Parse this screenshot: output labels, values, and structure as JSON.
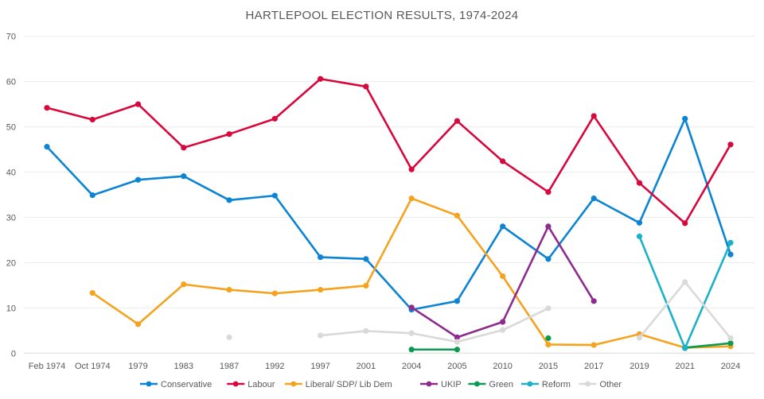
{
  "chart_data": {
    "type": "line",
    "title": "HARTLEPOOL ELECTION RESULTS, 1974-2024",
    "xlabel": "",
    "ylabel": "",
    "ylim": [
      0,
      70
    ],
    "yticks": [
      0,
      10,
      20,
      30,
      40,
      50,
      60,
      70
    ],
    "grid": true,
    "legend": "bottom",
    "categories": [
      "Feb 1974",
      "Oct 1974",
      "1979",
      "1983",
      "1987",
      "1992",
      "1997",
      "2001",
      "2004",
      "2005",
      "2010",
      "2015",
      "2017",
      "2019",
      "2021",
      "2024"
    ],
    "series": [
      {
        "name": "Conservative",
        "color": "#0b84d4",
        "values": [
          45.6,
          34.9,
          38.3,
          39.1,
          33.8,
          34.8,
          21.2,
          20.8,
          9.6,
          11.5,
          28.0,
          20.8,
          34.2,
          28.8,
          51.8,
          21.8
        ]
      },
      {
        "name": "Labour",
        "color": "#d8083d",
        "values": [
          54.2,
          51.6,
          55.0,
          45.4,
          48.4,
          51.8,
          60.6,
          58.9,
          40.6,
          51.3,
          42.4,
          35.6,
          52.4,
          37.6,
          28.7,
          46.1
        ]
      },
      {
        "name": "Liberal/ SDP/ Lib  Dem",
        "color": "#f5a31f",
        "values": [
          null,
          13.3,
          6.4,
          15.2,
          14.0,
          13.2,
          14.0,
          14.9,
          34.2,
          30.4,
          17.0,
          1.9,
          1.8,
          4.2,
          1.2,
          1.5
        ]
      },
      {
        "name": "UKIP",
        "color": "#8e2c8e",
        "values": [
          null,
          null,
          null,
          null,
          null,
          null,
          null,
          null,
          10.1,
          3.5,
          6.9,
          28.0,
          11.5,
          null,
          null,
          null
        ]
      },
      {
        "name": "Green",
        "color": "#0a9b50",
        "values": [
          null,
          null,
          null,
          null,
          null,
          null,
          null,
          null,
          0.8,
          0.8,
          null,
          3.3,
          null,
          null,
          1.2,
          2.2
        ]
      },
      {
        "name": "Reform",
        "color": "#1bb1c9",
        "values": [
          null,
          null,
          null,
          null,
          null,
          null,
          null,
          null,
          null,
          null,
          null,
          null,
          null,
          25.8,
          1.1,
          24.4
        ]
      },
      {
        "name": "Other",
        "color": "#d9d9d9",
        "values": [
          null,
          null,
          null,
          null,
          3.5,
          null,
          3.9,
          4.9,
          4.4,
          2.5,
          5.1,
          9.9,
          null,
          3.4,
          15.7,
          3.3
        ]
      }
    ]
  }
}
